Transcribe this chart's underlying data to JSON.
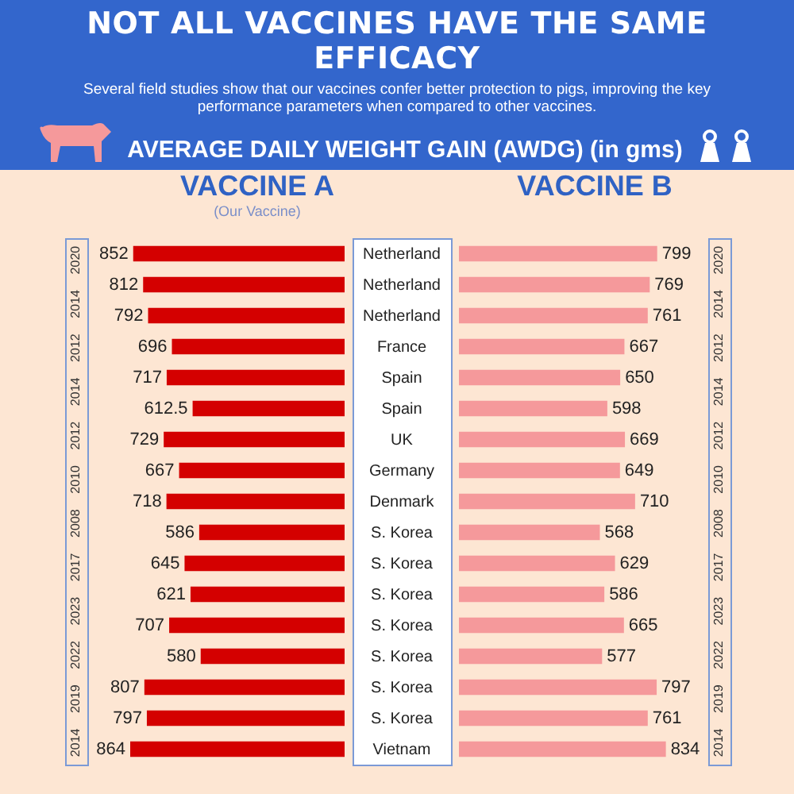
{
  "chart_data": [
    {
      "type": "bar",
      "orientation": "horizontal",
      "title": "NOT ALL VACCINES HAVE THE SAME EFFICACY",
      "subtitle": "Several field studies show that our vaccines confer better protection to pigs, improving the key performance parameters when compared to other vaccines.",
      "xlabel": "AVERAGE DAILY WEIGHT GAIN (AWDG) (in gms)",
      "categories": [
        "Netherland",
        "Netherland",
        "Netherland",
        "France",
        "Spain",
        "Spain",
        "UK",
        "Germany",
        "Denmark",
        "S. Korea",
        "S. Korea",
        "S. Korea",
        "S. Korea",
        "S. Korea",
        "S. Korea",
        "S. Korea",
        "Vietnam"
      ],
      "series": [
        {
          "name": "VACCINE A",
          "color": "#d40000",
          "values": [
            852,
            812,
            792,
            696,
            717,
            612.5,
            729,
            667,
            718,
            586,
            645,
            621,
            707,
            580,
            807,
            797,
            864
          ]
        }
      ],
      "data_labels": true,
      "annotations": [
        "(Our Vaccine)",
        "2020",
        "2014",
        "2012",
        "2014",
        "2012",
        "2010",
        "2008",
        "2017",
        "2023",
        "2022",
        "2019",
        "2014"
      ]
    },
    {
      "type": "bar",
      "orientation": "horizontal",
      "categories": [
        null,
        null,
        null,
        null,
        null,
        null,
        null,
        null,
        null,
        null,
        null,
        null,
        null,
        null,
        null,
        null,
        null
      ],
      "series": [
        {
          "name": "VACCINE B",
          "color": "#f5999b",
          "values": [
            799,
            769,
            761,
            667,
            650,
            598,
            669,
            649,
            710,
            568,
            629,
            586,
            665,
            577,
            797,
            761,
            834
          ]
        }
      ],
      "data_labels": true,
      "annotations": [
        "2020",
        "2014",
        "2012",
        "2014",
        "2012",
        "2010",
        "2008",
        "2017",
        "2023",
        "2022",
        "2019",
        "2014"
      ]
    }
  ]
}
